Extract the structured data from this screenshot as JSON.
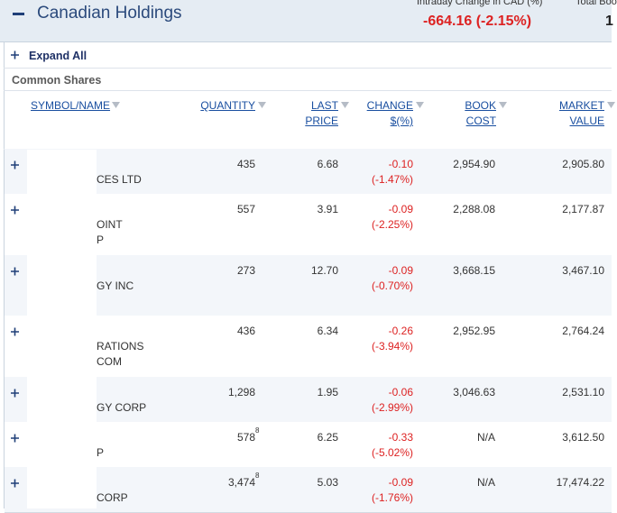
{
  "header": {
    "title": "Canadian Holdings",
    "intraday_label": "Intraday Change in CAD (%)",
    "intraday_value": "-664.16 (-2.15%)",
    "total_label": "Total Boo",
    "total_value": "1"
  },
  "toolbar": {
    "expand_all": "Expand All"
  },
  "section": {
    "title": "Common Shares"
  },
  "table": {
    "columns": [
      {
        "lines": [
          "SYMBOL/NAME"
        ]
      },
      {
        "lines": [
          "QUANTITY"
        ]
      },
      {
        "lines": [
          "LAST",
          "PRICE"
        ]
      },
      {
        "lines": [
          "CHANGE",
          "$(%)"
        ]
      },
      {
        "lines": [
          "BOOK",
          "COST"
        ]
      },
      {
        "lines": [
          "MARKET",
          "VALUE"
        ]
      }
    ],
    "rows": [
      {
        "name": [
          "CES LTD"
        ],
        "quantity": "435",
        "last_price": "6.68",
        "change": "-0.10",
        "change_pct": "(-1.47%)",
        "book_cost": "2,954.90",
        "market_value": "2,905.80"
      },
      {
        "name": [
          "OINT",
          "P"
        ],
        "quantity": "557",
        "last_price": "3.91",
        "change": "-0.09",
        "change_pct": "(-2.25%)",
        "book_cost": "2,288.08",
        "market_value": "2,177.87"
      },
      {
        "name": [
          "GY INC"
        ],
        "quantity": "273",
        "last_price": "12.70",
        "change": "-0.09",
        "change_pct": "(-0.70%)",
        "book_cost": "3,668.15",
        "market_value": "3,467.10"
      },
      {
        "name": [
          "RATIONS",
          "COM"
        ],
        "quantity": "436",
        "last_price": "6.34",
        "change": "-0.26",
        "change_pct": "(-3.94%)",
        "book_cost": "2,952.95",
        "market_value": "2,764.24"
      },
      {
        "name": [
          "GY CORP"
        ],
        "quantity": "1,298",
        "last_price": "1.95",
        "change": "-0.06",
        "change_pct": "(-2.99%)",
        "book_cost": "3,046.63",
        "market_value": "2,531.10"
      },
      {
        "name": [
          "P"
        ],
        "quantity": "578",
        "note": "8",
        "last_price": "6.25",
        "change": "-0.33",
        "change_pct": "(-5.02%)",
        "book_cost": "N/A",
        "market_value": "3,612.50"
      },
      {
        "name": [
          "CORP"
        ],
        "quantity": "3,474",
        "note": "8",
        "last_price": "5.03",
        "change": "-0.09",
        "change_pct": "(-1.76%)",
        "book_cost": "N/A",
        "market_value": "17,474.22"
      }
    ]
  }
}
